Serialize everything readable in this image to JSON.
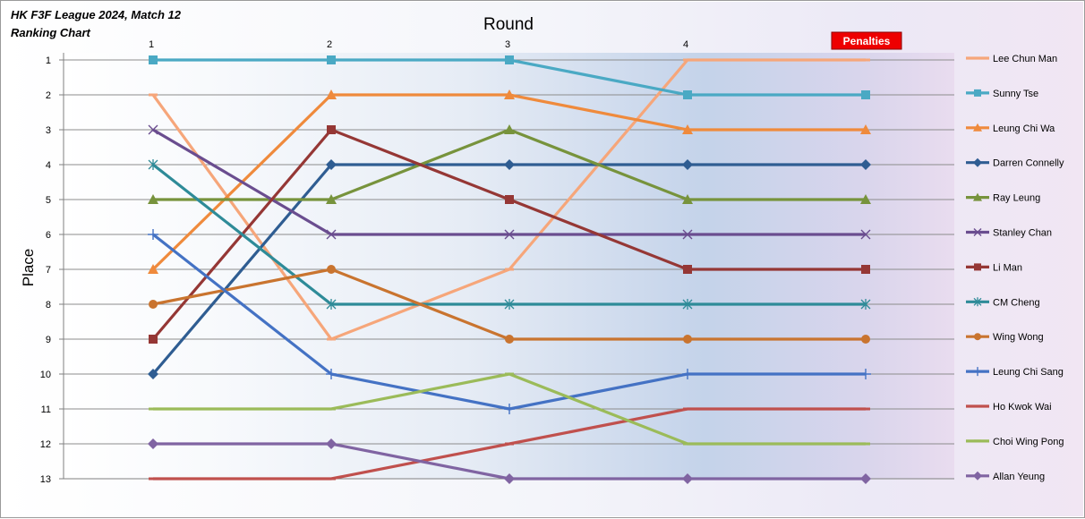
{
  "chart_data": {
    "type": "line",
    "title": "HK F3F League 2024, Match 12",
    "subtitle": "Ranking Chart",
    "xlabel": "Round",
    "ylabel": "Place",
    "x": [
      "1",
      "2",
      "3",
      "4",
      "Penalties"
    ],
    "x_tick_labels": [
      "1",
      "2",
      "3",
      "4"
    ],
    "penalties_label": "Penalties",
    "ylim": [
      1,
      13
    ],
    "y_inverted": true,
    "y_ticks": [
      1,
      2,
      3,
      4,
      5,
      6,
      7,
      8,
      9,
      10,
      11,
      12,
      13
    ],
    "grid": "horizontal",
    "legend_position": "right",
    "series": [
      {
        "name": "Lee Chun Man",
        "color": "#f6a67a",
        "marker": "dash",
        "values": [
          2,
          9,
          7,
          1,
          1
        ]
      },
      {
        "name": "Sunny Tse",
        "color": "#4aa9c4",
        "marker": "square",
        "values": [
          1,
          1,
          1,
          2,
          2
        ]
      },
      {
        "name": "Leung Chi Wa",
        "color": "#ef8a3c",
        "marker": "triangle",
        "values": [
          7,
          2,
          2,
          3,
          3
        ]
      },
      {
        "name": "Darren Connelly",
        "color": "#2f5d92",
        "marker": "diamond",
        "values": [
          10,
          4,
          4,
          4,
          4
        ]
      },
      {
        "name": "Ray Leung",
        "color": "#77933c",
        "marker": "triangle",
        "values": [
          5,
          5,
          3,
          5,
          5
        ]
      },
      {
        "name": "Stanley Chan",
        "color": "#6a4d8f",
        "marker": "x",
        "values": [
          3,
          6,
          6,
          6,
          6
        ]
      },
      {
        "name": "Li Man",
        "color": "#953735",
        "marker": "square",
        "values": [
          9,
          3,
          5,
          7,
          7
        ]
      },
      {
        "name": "CM Cheng",
        "color": "#2e8b98",
        "marker": "star",
        "values": [
          4,
          8,
          8,
          8,
          8
        ]
      },
      {
        "name": "Wing Wong",
        "color": "#c9742f",
        "marker": "circle",
        "values": [
          8,
          7,
          9,
          9,
          9
        ]
      },
      {
        "name": "Leung Chi Sang",
        "color": "#4472c4",
        "marker": "plus",
        "values": [
          6,
          10,
          11,
          10,
          10
        ]
      },
      {
        "name": "Ho Kwok Wai",
        "color": "#c0504d",
        "marker": "dash",
        "values": [
          13,
          13,
          12,
          11,
          11
        ]
      },
      {
        "name": "Choi Wing Pong",
        "color": "#9bbb59",
        "marker": "dash",
        "values": [
          11,
          11,
          10,
          12,
          12
        ]
      },
      {
        "name": "Allan Yeung",
        "color": "#8064a2",
        "marker": "diamond",
        "values": [
          12,
          12,
          13,
          13,
          13
        ]
      }
    ]
  }
}
